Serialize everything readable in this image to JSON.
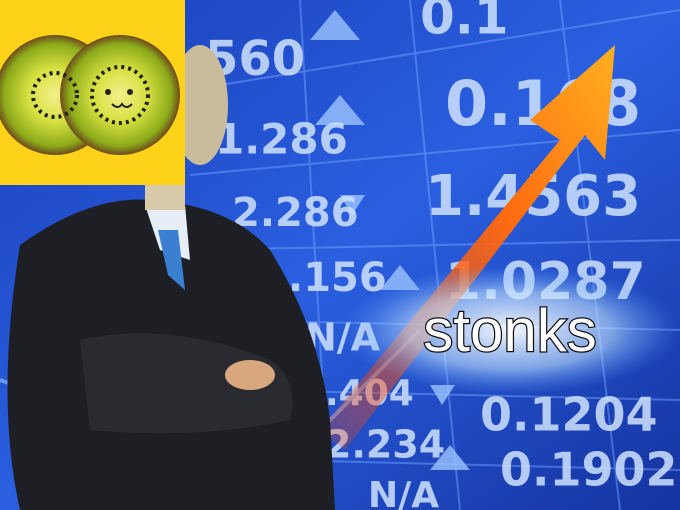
{
  "caption": "stonks",
  "board": {
    "values": [
      "0.1",
      "560",
      "0.168",
      "1.286",
      "1.4563",
      "2.286",
      ".156",
      "1.0287",
      "N/A",
      ".404",
      "0.1204",
      "2.234",
      "0.1902",
      "N/A"
    ]
  }
}
